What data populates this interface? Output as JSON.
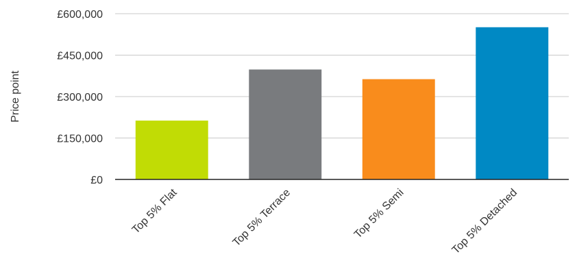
{
  "chart_data": {
    "type": "bar",
    "categories": [
      "Top 5% Flat",
      "Top 5% Terrace",
      "Top 5% Semi",
      "Top 5% Detached"
    ],
    "values": [
      213000,
      398000,
      363000,
      551000
    ],
    "bar_colors": [
      "#c1dc05",
      "#797b7e",
      "#f98c1c",
      "#0089c4"
    ],
    "title": "",
    "xlabel": "",
    "ylabel": "Price point",
    "ylim": [
      0,
      600000
    ],
    "yticks": [
      0,
      150000,
      300000,
      450000,
      600000
    ],
    "ytick_labels": [
      "£0",
      "£150,000",
      "£300,000",
      "£450,000",
      "£600,000"
    ],
    "grid": true,
    "legend": "none"
  }
}
